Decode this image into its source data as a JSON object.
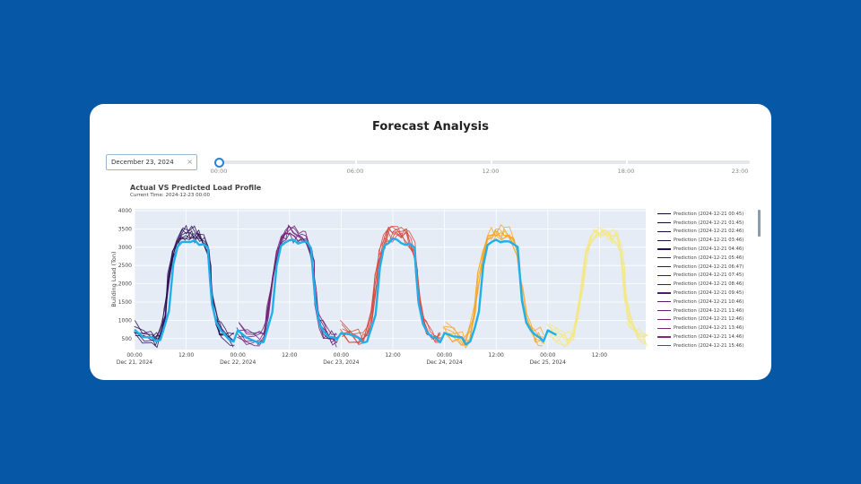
{
  "page": {
    "title": "Forecast Analysis"
  },
  "date_picker": {
    "value": "December 23, 2024",
    "clear_icon": "close-icon"
  },
  "time_slider": {
    "marks": [
      "00:00",
      "06:00",
      "12:00",
      "18:00",
      "23:00"
    ],
    "selected": "00:00",
    "position_fraction": 0
  },
  "chart": {
    "title": "Actual VS Predicted Load Profile",
    "subtitle": "Current Time: 2024-12-23 00:00"
  },
  "chart_data": {
    "type": "line",
    "title": "Actual VS Predicted Load Profile",
    "subtitle": "Current Time: 2024-12-23 00:00",
    "xlabel": "",
    "ylabel": "Building Load (Ton)",
    "xlim": [
      "2024-12-21 00:00",
      "2024-12-25 23:00"
    ],
    "ylim": [
      200,
      4050
    ],
    "y_ticks": [
      500,
      1000,
      1500,
      2000,
      2500,
      3000,
      3500,
      4000
    ],
    "x_ticks": [
      {
        "top": "00:00",
        "bottom": "Dec 21, 2024"
      },
      {
        "top": "12:00",
        "bottom": ""
      },
      {
        "top": "00:00",
        "bottom": "Dec 22, 2024"
      },
      {
        "top": "12:00",
        "bottom": ""
      },
      {
        "top": "00:00",
        "bottom": "Dec 23, 2024"
      },
      {
        "top": "12:00",
        "bottom": ""
      },
      {
        "top": "00:00",
        "bottom": "Dec 24, 2024"
      },
      {
        "top": "12:00",
        "bottom": ""
      },
      {
        "top": "00:00",
        "bottom": "Dec 25, 2024"
      },
      {
        "top": "12:00",
        "bottom": ""
      }
    ],
    "grid": true,
    "legend_placement": "right",
    "actual_color": "#1fb0ea",
    "series": [
      {
        "name": "Prediction (2024-12-21 00:45)",
        "color": "#0d0829"
      },
      {
        "name": "Prediction (2024-12-21 01:45)",
        "color": "#130b33"
      },
      {
        "name": "Prediction (2024-12-21 02:46)",
        "color": "#1a0d3e"
      },
      {
        "name": "Prediction (2024-12-21 03:46)",
        "color": "#210f4a"
      },
      {
        "name": "Prediction (2024-12-21 04:46)",
        "color": "#291054"
      },
      {
        "name": "Prediction (2024-12-21 05:46)",
        "color": "#31115c"
      },
      {
        "name": "Prediction (2024-12-21 06:47)",
        "color": "#3a1263"
      },
      {
        "name": "Prediction (2024-12-21 07:45)",
        "color": "#421368"
      },
      {
        "name": "Prediction (2024-12-21 08:46)",
        "color": "#4b156d"
      },
      {
        "name": "Prediction (2024-12-21 09:45)",
        "color": "#541870"
      },
      {
        "name": "Prediction (2024-12-21 10:46)",
        "color": "#5d1b72"
      },
      {
        "name": "Prediction (2024-12-21 11:46)",
        "color": "#661f74"
      },
      {
        "name": "Prediction (2024-12-21 12:46)",
        "color": "#6f2376"
      },
      {
        "name": "Prediction (2024-12-21 13:46)",
        "color": "#782777"
      },
      {
        "name": "Prediction (2024-12-21 14:46)",
        "color": "#812b77"
      },
      {
        "name": "Prediction (2024-12-21 15:46)",
        "color": "#8a2f77"
      }
    ],
    "daily_profile_hours": [
      0,
      2,
      4,
      5,
      6,
      7,
      8,
      9,
      10,
      11,
      12,
      13,
      14,
      15,
      16,
      17,
      17.5,
      18,
      19,
      20,
      21,
      22,
      23
    ],
    "actual_profile_values": [
      700,
      560,
      480,
      380,
      450,
      800,
      1200,
      2500,
      3050,
      3150,
      3200,
      3180,
      3150,
      3120,
      3100,
      3000,
      2200,
      1500,
      900,
      700,
      580,
      500,
      450
    ],
    "prediction_profile_values": [
      750,
      600,
      500,
      500,
      650,
      1200,
      2100,
      2800,
      3200,
      3350,
      3400,
      3380,
      3350,
      3300,
      3200,
      2900,
      2400,
      1700,
      1000,
      750,
      600,
      550,
      500
    ],
    "day_colors": [
      "#2a0f52",
      "#6b1f73",
      "#d4493b",
      "#f4a623",
      "#f5e880"
    ],
    "days": [
      "Dec 21, 2024",
      "Dec 22, 2024",
      "Dec 23, 2024",
      "Dec 24, 2024",
      "Dec 25, 2024"
    ]
  }
}
